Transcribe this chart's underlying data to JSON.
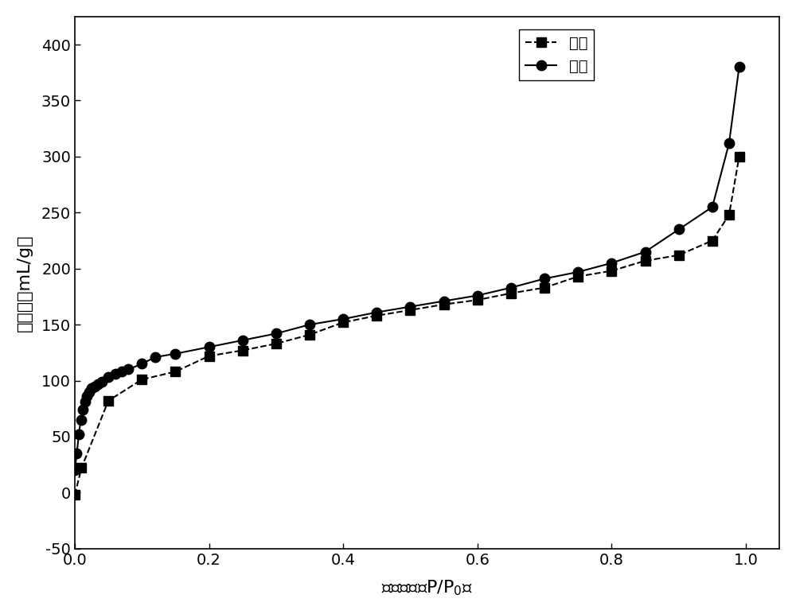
{
  "adsorption_x": [
    0.0,
    0.003,
    0.006,
    0.009,
    0.012,
    0.015,
    0.018,
    0.021,
    0.025,
    0.03,
    0.035,
    0.04,
    0.05,
    0.06,
    0.07,
    0.08,
    0.1,
    0.12,
    0.15,
    0.2,
    0.25,
    0.3,
    0.35,
    0.4,
    0.45,
    0.5,
    0.55,
    0.6,
    0.65,
    0.7,
    0.75,
    0.8,
    0.85,
    0.9,
    0.95,
    0.975,
    0.99
  ],
  "adsorption_y": [
    20,
    35,
    52,
    65,
    74,
    81,
    86,
    90,
    93,
    95,
    97,
    99,
    103,
    106,
    108,
    110,
    115,
    121,
    124,
    130,
    136,
    142,
    150,
    155,
    161,
    166,
    171,
    176,
    183,
    191,
    197,
    205,
    215,
    235,
    255,
    312,
    380
  ],
  "desorption_x": [
    0.0,
    0.01,
    0.05,
    0.1,
    0.15,
    0.2,
    0.25,
    0.3,
    0.35,
    0.4,
    0.45,
    0.5,
    0.55,
    0.6,
    0.65,
    0.7,
    0.75,
    0.8,
    0.85,
    0.9,
    0.95,
    0.975,
    0.99
  ],
  "desorption_y": [
    -2,
    22,
    82,
    101,
    108,
    122,
    127,
    133,
    141,
    152,
    158,
    163,
    168,
    172,
    178,
    183,
    193,
    198,
    207,
    212,
    225,
    248,
    300
  ],
  "ylabel": "吸附量（mL/g）",
  "xlim": [
    0.0,
    1.05
  ],
  "ylim": [
    -50,
    425
  ],
  "yticks": [
    -50,
    0,
    50,
    100,
    150,
    200,
    250,
    300,
    350,
    400
  ],
  "xticks": [
    0.0,
    0.2,
    0.4,
    0.6,
    0.8,
    1.0
  ],
  "legend_desorption": "脱附",
  "legend_adsorption": "吸附",
  "line_color": "#000000",
  "marker_square": "s",
  "marker_circle": "o",
  "markersize": 9,
  "linewidth": 1.5,
  "tick_fontsize": 14,
  "label_fontsize": 16
}
